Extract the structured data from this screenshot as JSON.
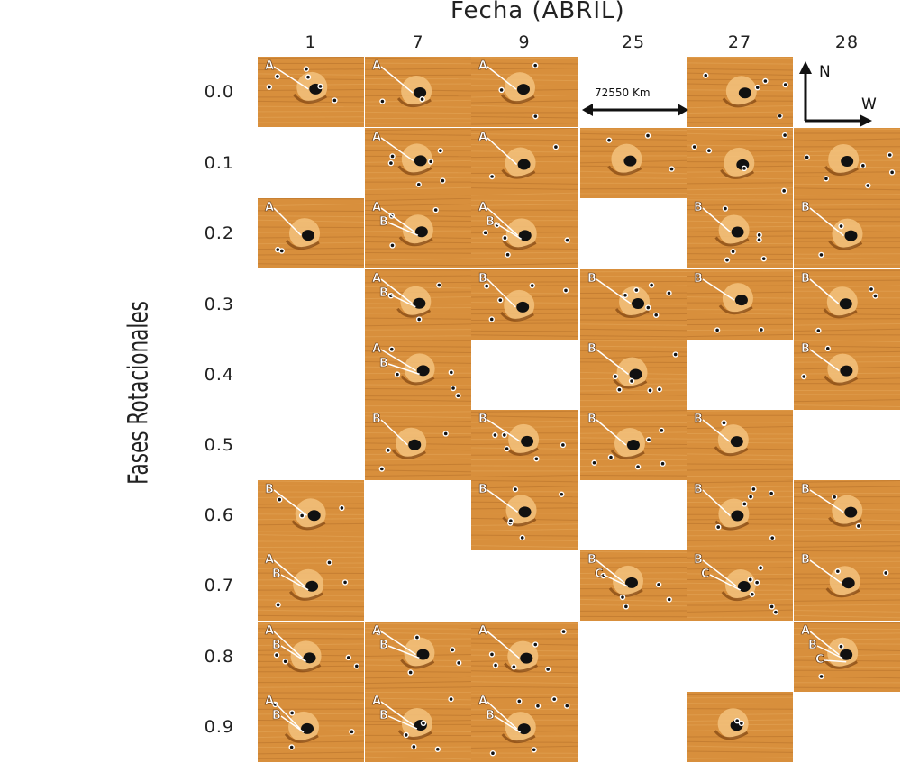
{
  "header": {
    "title": "Fecha (ABRIL)"
  },
  "y_axis_label": "Fases Rotacionales",
  "columns": [
    "1",
    "7",
    "9",
    "25",
    "27",
    "28"
  ],
  "rows": [
    "0.0",
    "0.1",
    "0.2",
    "0.3",
    "0.4",
    "0.5",
    "0.6",
    "0.7",
    "0.8",
    "0.9"
  ],
  "scale_label": "72550 Km",
  "compass": {
    "north": "N",
    "west": "W"
  },
  "colors": {
    "tile_base": "#d88f3c",
    "tile_light": "#f3c27c",
    "tile_dark": "#8a4c15",
    "spot": "#111111",
    "label": "#ffffff"
  },
  "tiles": [
    {
      "row": 0,
      "col": 0,
      "labels": [
        "A"
      ]
    },
    {
      "row": 0,
      "col": 1,
      "labels": [
        "A"
      ]
    },
    {
      "row": 0,
      "col": 2,
      "labels": [
        "A"
      ]
    },
    {
      "row": 0,
      "col": 4,
      "labels": []
    },
    {
      "row": 1,
      "col": 1,
      "labels": [
        "A"
      ]
    },
    {
      "row": 1,
      "col": 2,
      "labels": [
        "A"
      ]
    },
    {
      "row": 1,
      "col": 3,
      "labels": []
    },
    {
      "row": 1,
      "col": 4,
      "labels": []
    },
    {
      "row": 1,
      "col": 5,
      "labels": []
    },
    {
      "row": 2,
      "col": 0,
      "labels": [
        "A"
      ]
    },
    {
      "row": 2,
      "col": 1,
      "labels": [
        "A",
        "B"
      ]
    },
    {
      "row": 2,
      "col": 2,
      "labels": [
        "A",
        "B"
      ]
    },
    {
      "row": 2,
      "col": 4,
      "labels": [
        "B"
      ]
    },
    {
      "row": 2,
      "col": 5,
      "labels": [
        "B"
      ]
    },
    {
      "row": 3,
      "col": 1,
      "labels": [
        "A",
        "B"
      ]
    },
    {
      "row": 3,
      "col": 2,
      "labels": [
        "B"
      ]
    },
    {
      "row": 3,
      "col": 3,
      "labels": [
        "B"
      ]
    },
    {
      "row": 3,
      "col": 4,
      "labels": [
        "B"
      ]
    },
    {
      "row": 3,
      "col": 5,
      "labels": [
        "B"
      ]
    },
    {
      "row": 4,
      "col": 1,
      "labels": [
        "A",
        "B"
      ]
    },
    {
      "row": 4,
      "col": 3,
      "labels": [
        "B"
      ]
    },
    {
      "row": 4,
      "col": 5,
      "labels": [
        "B"
      ]
    },
    {
      "row": 5,
      "col": 1,
      "labels": [
        "B"
      ]
    },
    {
      "row": 5,
      "col": 2,
      "labels": [
        "B"
      ]
    },
    {
      "row": 5,
      "col": 3,
      "labels": [
        "B"
      ]
    },
    {
      "row": 5,
      "col": 4,
      "labels": [
        "B"
      ]
    },
    {
      "row": 6,
      "col": 0,
      "labels": [
        "B"
      ]
    },
    {
      "row": 6,
      "col": 2,
      "labels": [
        "B"
      ]
    },
    {
      "row": 6,
      "col": 4,
      "labels": [
        "B"
      ]
    },
    {
      "row": 6,
      "col": 5,
      "labels": [
        "B"
      ]
    },
    {
      "row": 7,
      "col": 0,
      "labels": [
        "A",
        "B"
      ]
    },
    {
      "row": 7,
      "col": 3,
      "labels": [
        "B",
        "C"
      ]
    },
    {
      "row": 7,
      "col": 4,
      "labels": [
        "B",
        "C"
      ]
    },
    {
      "row": 7,
      "col": 5,
      "labels": [
        "B"
      ]
    },
    {
      "row": 8,
      "col": 0,
      "labels": [
        "A",
        "B"
      ]
    },
    {
      "row": 8,
      "col": 1,
      "labels": [
        "A",
        "B"
      ]
    },
    {
      "row": 8,
      "col": 2,
      "labels": [
        "A"
      ]
    },
    {
      "row": 8,
      "col": 5,
      "labels": [
        "A",
        "B",
        "C"
      ]
    },
    {
      "row": 9,
      "col": 0,
      "labels": [
        "A",
        "B"
      ]
    },
    {
      "row": 9,
      "col": 1,
      "labels": [
        "A",
        "B"
      ]
    },
    {
      "row": 9,
      "col": 2,
      "labels": [
        "A",
        "B"
      ]
    },
    {
      "row": 9,
      "col": 4,
      "labels": []
    }
  ]
}
